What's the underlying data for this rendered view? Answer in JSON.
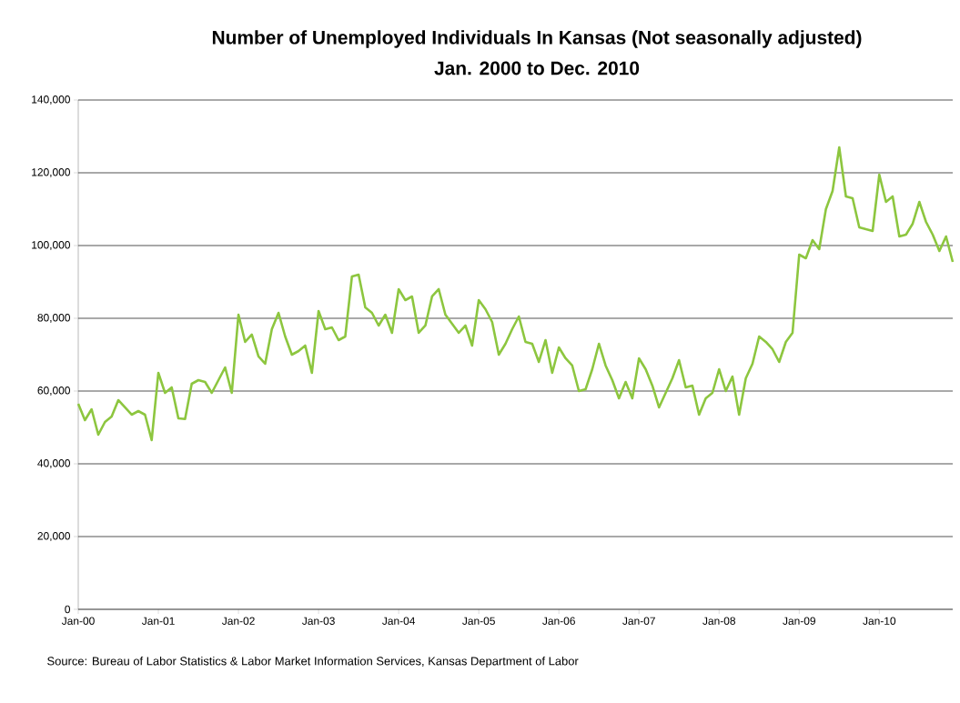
{
  "chart_data": {
    "type": "line",
    "title": "Number of Unemployed Individuals In Kansas (Not seasonally adjusted)",
    "subtitle": "Jan. 2000 to Dec. 2010",
    "annotations": [
      "Source:  Bureau of Labor Statistics & Labor Market Information Services, Kansas Department of Labor"
    ],
    "categories": [
      "Jan-00",
      null,
      null,
      null,
      null,
      null,
      null,
      null,
      null,
      null,
      null,
      null,
      "Jan-01",
      null,
      null,
      null,
      null,
      null,
      null,
      null,
      null,
      null,
      null,
      null,
      "Jan-02",
      null,
      null,
      null,
      null,
      null,
      null,
      null,
      null,
      null,
      null,
      null,
      "Jan-03",
      null,
      null,
      null,
      null,
      null,
      null,
      null,
      null,
      null,
      null,
      null,
      "Jan-04",
      null,
      null,
      null,
      null,
      null,
      null,
      null,
      null,
      null,
      null,
      null,
      "Jan-05",
      null,
      null,
      null,
      null,
      null,
      null,
      null,
      null,
      null,
      null,
      null,
      "Jan-06",
      null,
      null,
      null,
      null,
      null,
      null,
      null,
      null,
      null,
      null,
      null,
      "Jan-07",
      null,
      null,
      null,
      null,
      null,
      null,
      null,
      null,
      null,
      null,
      null,
      "Jan-08",
      null,
      null,
      null,
      null,
      null,
      null,
      null,
      null,
      null,
      null,
      null,
      "Jan-09",
      null,
      null,
      null,
      null,
      null,
      null,
      null,
      null,
      null,
      null,
      null,
      "Jan-10",
      null,
      null,
      null,
      null,
      null,
      null,
      null,
      null,
      null,
      null,
      null
    ],
    "values": [
      56500,
      52000,
      55000,
      48000,
      51500,
      53000,
      57500,
      55500,
      53500,
      54500,
      53500,
      46500,
      65000,
      59500,
      61000,
      52500,
      52300,
      62000,
      63000,
      62500,
      59500,
      63000,
      66500,
      59500,
      81000,
      73500,
      75500,
      69500,
      67500,
      77000,
      81500,
      75000,
      70000,
      71000,
      72500,
      65000,
      82000,
      77000,
      77500,
      74000,
      75000,
      91500,
      92000,
      83000,
      81500,
      78000,
      81000,
      76000,
      88000,
      85000,
      86000,
      76000,
      78000,
      86000,
      88000,
      81000,
      78500,
      76000,
      78000,
      72500,
      85000,
      82500,
      79000,
      70000,
      73000,
      77000,
      80500,
      73500,
      73000,
      68000,
      74000,
      65000,
      72000,
      69000,
      67000,
      60000,
      60500,
      66000,
      73000,
      67000,
      63000,
      58000,
      62500,
      58000,
      69000,
      66000,
      61500,
      55500,
      59500,
      63500,
      68500,
      61000,
      61500,
      53500,
      58000,
      59500,
      66000,
      60000,
      64000,
      53500,
      63500,
      67500,
      75000,
      73500,
      71500,
      68000,
      73500,
      76000,
      97500,
      96500,
      101500,
      99000,
      110000,
      115000,
      127000,
      113500,
      113000,
      105000,
      104500,
      104000,
      119500,
      112000,
      113500,
      102500,
      103000,
      106000,
      112000,
      106500,
      103000,
      98500,
      102500,
      95500
    ],
    "color": "#8dc63f",
    "ylim": [
      0,
      140000
    ],
    "yticks": [
      {
        "value": 0,
        "label": "0"
      },
      {
        "value": 20000,
        "label": "20,000"
      },
      {
        "value": 40000,
        "label": "40,000"
      },
      {
        "value": 60000,
        "label": "60,000"
      },
      {
        "value": 80000,
        "label": "80,000"
      },
      {
        "value": 100000,
        "label": "100,000"
      },
      {
        "value": 120000,
        "label": "120,000"
      },
      {
        "value": 140000,
        "label": "140,000"
      }
    ],
    "grid": "y"
  }
}
